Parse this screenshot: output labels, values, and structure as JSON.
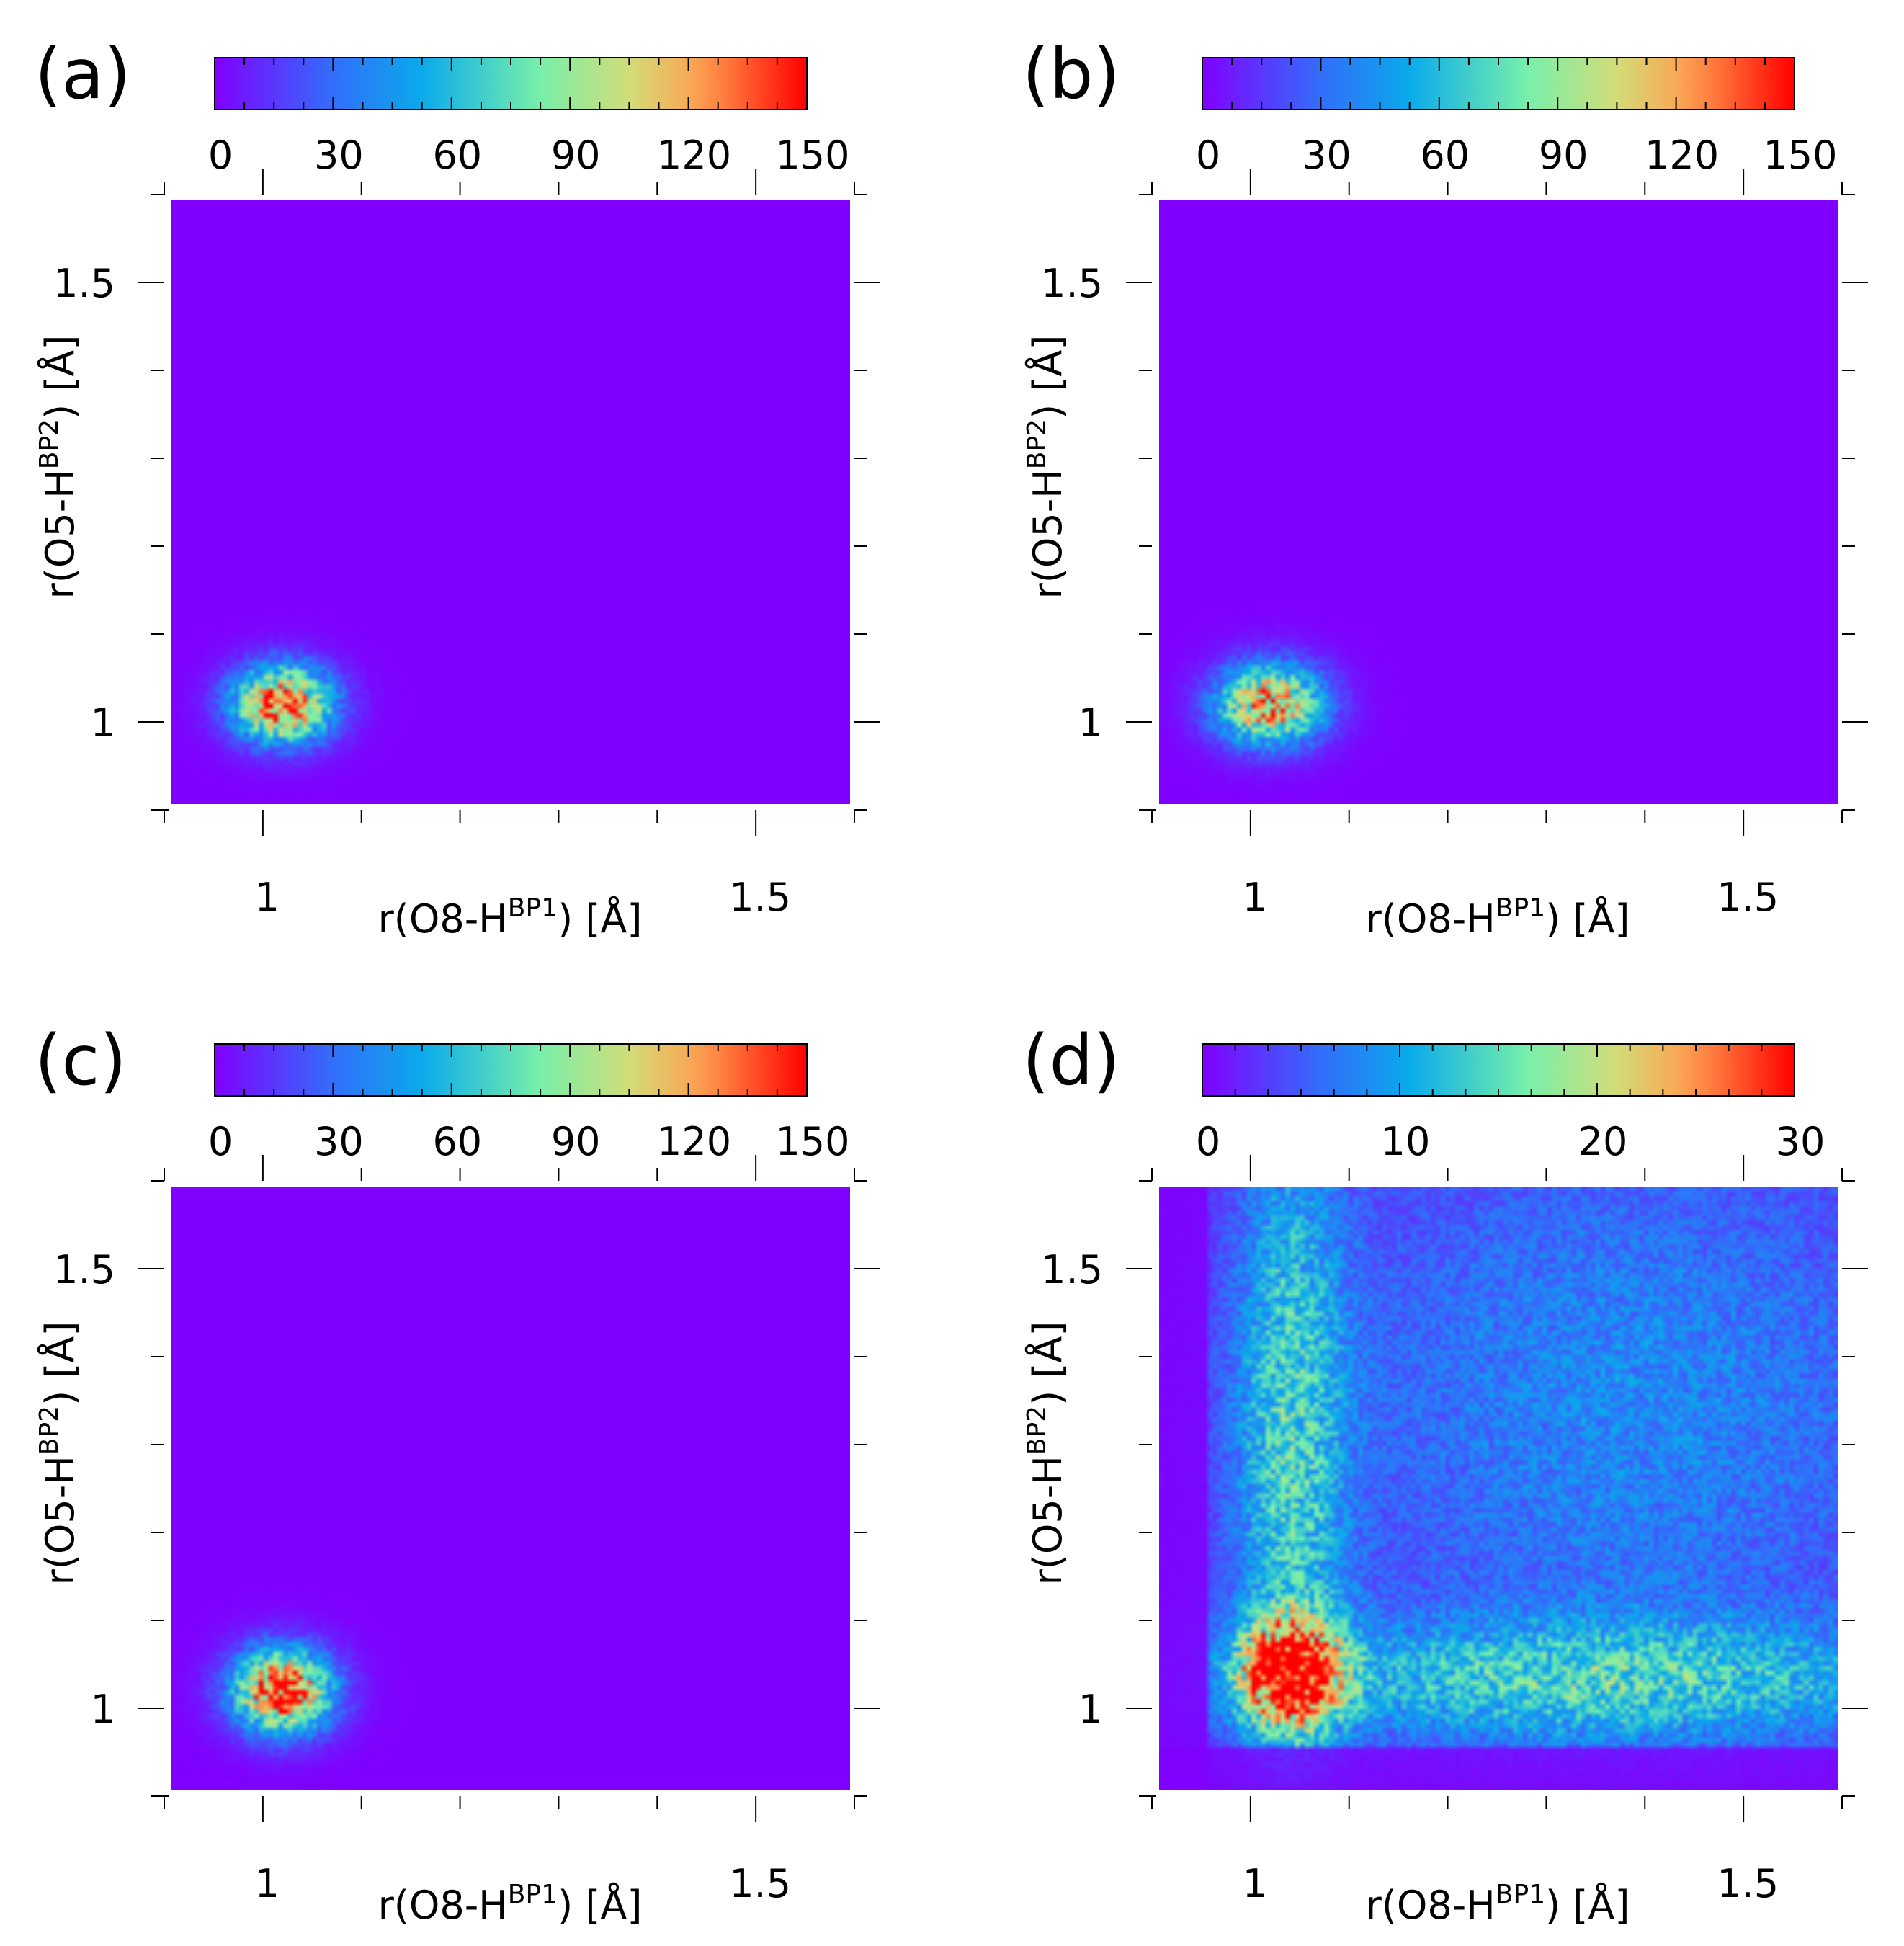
{
  "chart_data": [
    {
      "type": "heatmap",
      "panel_label": "(a)",
      "xlabel": {
        "main": "r(O8-H",
        "sup": "BP1",
        "tail": ") [Å]"
      },
      "ylabel": {
        "main": "r(O5-H",
        "sup": "BP2",
        "tail": ") [Å]"
      },
      "xlim": [
        0.9,
        1.6
      ],
      "ylim": [
        0.9,
        1.6
      ],
      "xticks": [
        {
          "value": 1.0,
          "label": "1"
        },
        {
          "value": 1.5,
          "label": "1.5"
        }
      ],
      "yticks": [
        {
          "value": 1.0,
          "label": "1"
        },
        {
          "value": 1.5,
          "label": "1.5"
        }
      ],
      "colorbar": {
        "min": 0,
        "max": 150,
        "ticks": [
          0,
          30,
          60,
          90,
          120,
          150
        ],
        "labels": [
          "0",
          "30",
          "60",
          "90",
          "120",
          "150"
        ]
      },
      "clusters": [
        {
          "x": 1.02,
          "y": 1.02,
          "peak": 140,
          "sigma_x": 0.035,
          "sigma_y": 0.03
        }
      ],
      "background": 0,
      "noise": 2
    },
    {
      "type": "heatmap",
      "panel_label": "(b)",
      "xlabel": {
        "main": "r(O8-H",
        "sup": "BP1",
        "tail": ") [Å]"
      },
      "ylabel": {
        "main": "r(O5-H",
        "sup": "BP2",
        "tail": ") [Å]"
      },
      "xlim": [
        0.9,
        1.6
      ],
      "ylim": [
        0.9,
        1.6
      ],
      "xticks": [
        {
          "value": 1.0,
          "label": "1"
        },
        {
          "value": 1.5,
          "label": "1.5"
        }
      ],
      "yticks": [
        {
          "value": 1.0,
          "label": "1"
        },
        {
          "value": 1.5,
          "label": "1.5"
        }
      ],
      "colorbar": {
        "min": 0,
        "max": 150,
        "ticks": [
          0,
          30,
          60,
          90,
          120,
          150
        ],
        "labels": [
          "0",
          "30",
          "60",
          "90",
          "120",
          "150"
        ]
      },
      "clusters": [
        {
          "x": 1.02,
          "y": 1.02,
          "peak": 125,
          "sigma_x": 0.038,
          "sigma_y": 0.032
        }
      ],
      "background": 0,
      "noise": 2
    },
    {
      "type": "heatmap",
      "panel_label": "(c)",
      "xlabel": {
        "main": "r(O8-H",
        "sup": "BP1",
        "tail": ") [Å]"
      },
      "ylabel": {
        "main": "r(O5-H",
        "sup": "BP2",
        "tail": ") [Å]"
      },
      "xlim": [
        0.9,
        1.6
      ],
      "ylim": [
        0.9,
        1.6
      ],
      "xticks": [
        {
          "value": 1.0,
          "label": "1"
        },
        {
          "value": 1.5,
          "label": "1.5"
        }
      ],
      "yticks": [
        {
          "value": 1.0,
          "label": "1"
        },
        {
          "value": 1.5,
          "label": "1.5"
        }
      ],
      "colorbar": {
        "min": 0,
        "max": 150,
        "ticks": [
          0,
          30,
          60,
          90,
          120,
          150
        ],
        "labels": [
          "0",
          "30",
          "60",
          "90",
          "120",
          "150"
        ]
      },
      "clusters": [
        {
          "x": 1.02,
          "y": 1.02,
          "peak": 145,
          "sigma_x": 0.035,
          "sigma_y": 0.033
        }
      ],
      "background": 0,
      "noise": 2
    },
    {
      "type": "heatmap",
      "panel_label": "(d)",
      "xlabel": {
        "main": "r(O8-H",
        "sup": "BP1",
        "tail": ") [Å]"
      },
      "ylabel": {
        "main": "r(O5-H",
        "sup": "BP2",
        "tail": ") [Å]"
      },
      "xlim": [
        0.9,
        1.6
      ],
      "ylim": [
        0.9,
        1.6
      ],
      "xticks": [
        {
          "value": 1.0,
          "label": "1"
        },
        {
          "value": 1.5,
          "label": "1.5"
        }
      ],
      "yticks": [
        {
          "value": 1.0,
          "label": "1"
        },
        {
          "value": 1.5,
          "label": "1.5"
        }
      ],
      "colorbar": {
        "min": 0,
        "max": 30,
        "ticks": [
          0,
          10,
          20,
          30
        ],
        "labels": [
          "0",
          "10",
          "20",
          "30"
        ]
      },
      "clusters": [
        {
          "x": 1.04,
          "y": 1.04,
          "peak": 26,
          "sigma_x": 0.035,
          "sigma_y": 0.04
        },
        {
          "x": 1.04,
          "y": 1.3,
          "peak": 11,
          "sigma_x": 0.04,
          "sigma_y": 0.28
        },
        {
          "x": 1.35,
          "y": 1.03,
          "peak": 11,
          "sigma_x": 0.25,
          "sigma_y": 0.05
        },
        {
          "x": 1.38,
          "y": 1.35,
          "peak": 7,
          "sigma_x": 0.25,
          "sigma_y": 0.25
        }
      ],
      "background": 1,
      "noise": 7
    }
  ]
}
